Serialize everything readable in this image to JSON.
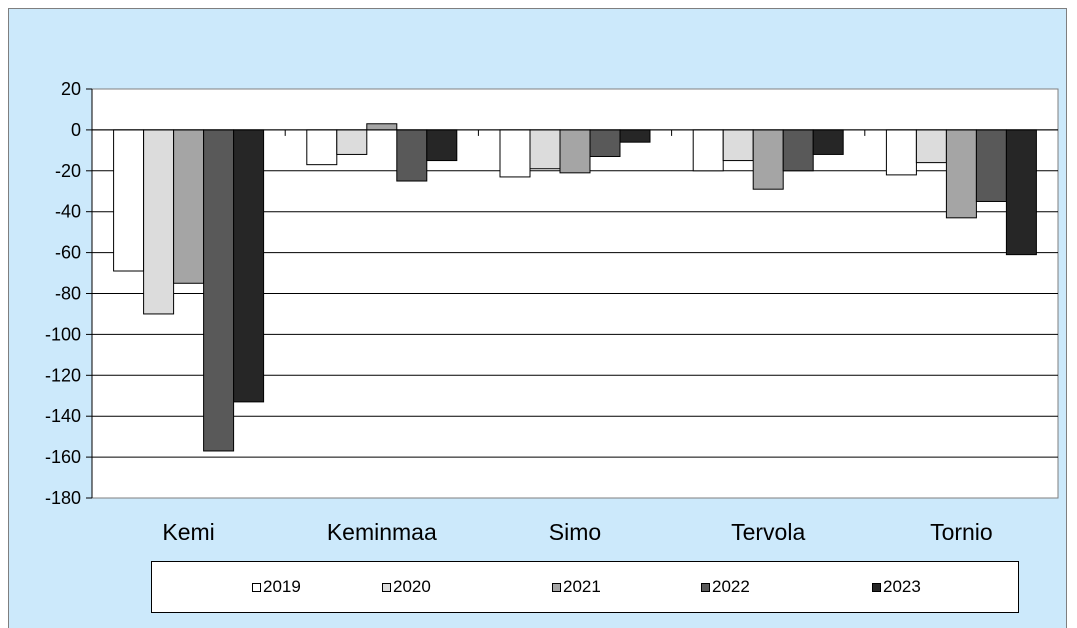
{
  "chart_data": {
    "type": "bar",
    "categories": [
      "Kemi",
      "Keminmaa",
      "Simo",
      "Tervola",
      "Tornio"
    ],
    "series": [
      {
        "name": "2019",
        "color": "#ffffff",
        "values": [
          -69,
          -17,
          -23,
          -20,
          -22
        ]
      },
      {
        "name": "2020",
        "color": "#dcdcdc",
        "values": [
          -90,
          -12,
          -19,
          -15,
          -16
        ]
      },
      {
        "name": "2021",
        "color": "#a5a5a5",
        "values": [
          -75,
          3,
          -21,
          -29,
          -43
        ]
      },
      {
        "name": "2022",
        "color": "#595959",
        "values": [
          -157,
          -25,
          -13,
          -20,
          -35
        ]
      },
      {
        "name": "2023",
        "color": "#262626",
        "values": [
          -133,
          -15,
          -6,
          -12,
          -61
        ]
      }
    ],
    "ylim": [
      -180,
      20
    ],
    "yticks": [
      20,
      0,
      -20,
      -40,
      -60,
      -80,
      -100,
      -120,
      -140,
      -160,
      -180
    ],
    "title": "",
    "xlabel": "",
    "ylabel": "",
    "grid": true,
    "legend_position": "bottom"
  }
}
